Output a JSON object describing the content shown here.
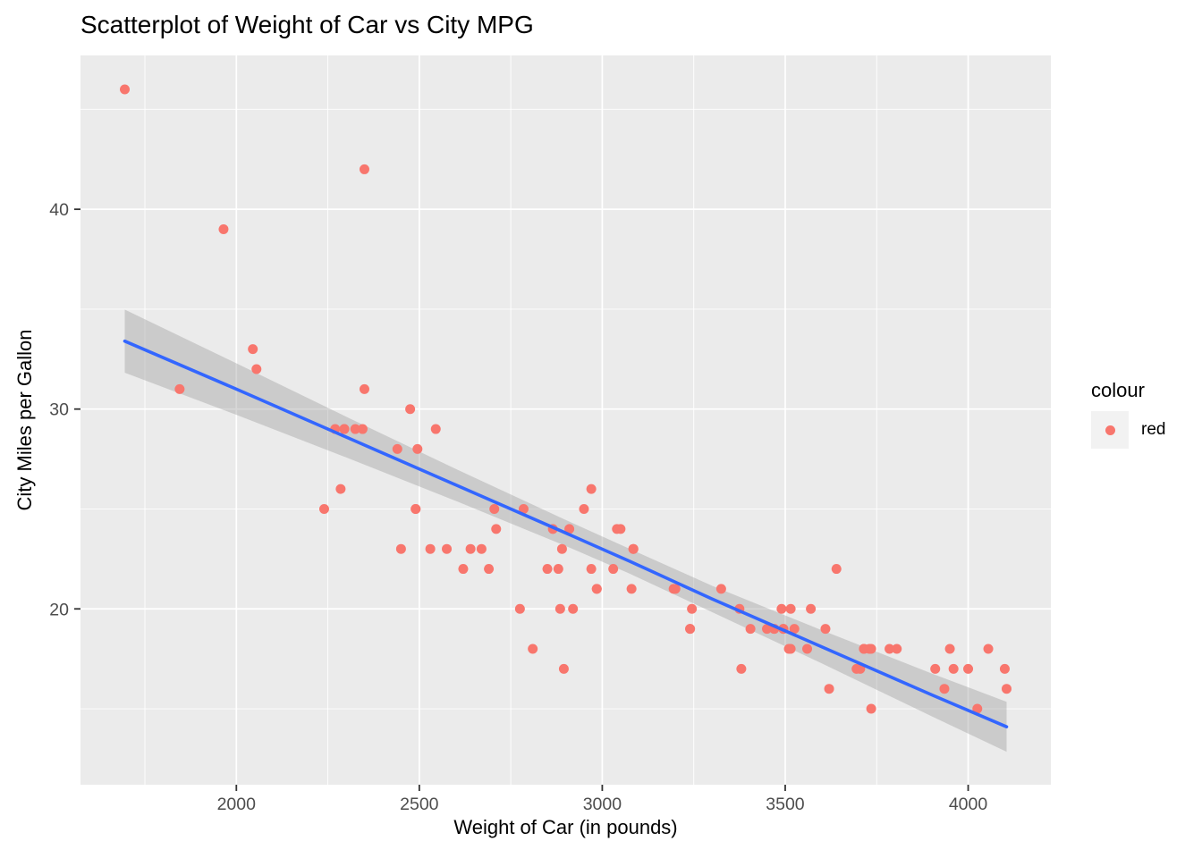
{
  "title": "Scatterplot of Weight of Car vs City MPG",
  "chart_data": {
    "type": "scatter",
    "title": "Scatterplot of Weight of Car vs City MPG",
    "xlabel": "Weight of Car (in pounds)",
    "ylabel": "City Miles per Gallon",
    "xlim": [
      1574,
      4226
    ],
    "ylim": [
      11.2,
      47.7
    ],
    "x_ticks": [
      2000,
      2500,
      3000,
      3500,
      4000
    ],
    "x_minor_ticks": [
      1750,
      2250,
      2750,
      3250,
      3750
    ],
    "y_ticks": [
      20,
      30,
      40
    ],
    "y_minor_ticks": [
      15,
      25,
      35,
      45
    ],
    "grid": "white major and minor gridlines on grey panel",
    "panel_color": "#EBEBEB",
    "point_color": "#F8766D",
    "point_radius": 5.5,
    "smooth_line_color": "#3366FF",
    "ci_band_color": "#9A9A9A",
    "ci_band_opacity": 0.4,
    "tick_color": "#333333",
    "tick_label_color": "#4D4D4D",
    "legend": {
      "title": "colour",
      "position": "right",
      "entries": [
        {
          "label": "red",
          "color": "#F8766D"
        }
      ]
    },
    "points": [
      [
        2705,
        25
      ],
      [
        3560,
        18
      ],
      [
        3375,
        20
      ],
      [
        3405,
        19
      ],
      [
        3640,
        22
      ],
      [
        2880,
        22
      ],
      [
        3470,
        19
      ],
      [
        4105,
        16
      ],
      [
        3495,
        19
      ],
      [
        3620,
        16
      ],
      [
        3935,
        16
      ],
      [
        2490,
        25
      ],
      [
        2785,
        25
      ],
      [
        3240,
        19
      ],
      [
        3195,
        21
      ],
      [
        3715,
        18
      ],
      [
        4025,
        15
      ],
      [
        3910,
        17
      ],
      [
        3380,
        17
      ],
      [
        3515,
        20
      ],
      [
        3085,
        23
      ],
      [
        3570,
        20
      ],
      [
        2270,
        29
      ],
      [
        2670,
        23
      ],
      [
        2970,
        22
      ],
      [
        3705,
        17
      ],
      [
        3080,
        21
      ],
      [
        3805,
        18
      ],
      [
        2295,
        29
      ],
      [
        3490,
        20
      ],
      [
        1845,
        31
      ],
      [
        2530,
        23
      ],
      [
        2690,
        22
      ],
      [
        2850,
        22
      ],
      [
        2710,
        24
      ],
      [
        3735,
        15
      ],
      [
        3325,
        21
      ],
      [
        3950,
        18
      ],
      [
        1695,
        46
      ],
      [
        2475,
        30
      ],
      [
        2865,
        24
      ],
      [
        2350,
        42
      ],
      [
        3040,
        24
      ],
      [
        2345,
        29
      ],
      [
        2620,
        22
      ],
      [
        2285,
        26
      ],
      [
        2885,
        20
      ],
      [
        4000,
        17
      ],
      [
        3510,
        18
      ],
      [
        3515,
        18
      ],
      [
        3695,
        17
      ],
      [
        4055,
        18
      ],
      [
        2325,
        29
      ],
      [
        2440,
        28
      ],
      [
        2970,
        26
      ],
      [
        3735,
        18
      ],
      [
        2895,
        17
      ],
      [
        2920,
        20
      ],
      [
        3525,
        19
      ],
      [
        2450,
        23
      ],
      [
        3610,
        19
      ],
      [
        2295,
        29
      ],
      [
        3730,
        18
      ],
      [
        2545,
        29
      ],
      [
        3050,
        24
      ],
      [
        4100,
        17
      ],
      [
        3200,
        21
      ],
      [
        2910,
        24
      ],
      [
        2890,
        23
      ],
      [
        3715,
        18
      ],
      [
        3470,
        19
      ],
      [
        2640,
        23
      ],
      [
        2350,
        31
      ],
      [
        2575,
        23
      ],
      [
        3240,
        19
      ],
      [
        3450,
        19
      ],
      [
        3495,
        19
      ],
      [
        2775,
        20
      ],
      [
        2495,
        28
      ],
      [
        2045,
        33
      ],
      [
        2490,
        25
      ],
      [
        3085,
        23
      ],
      [
        1965,
        39
      ],
      [
        2055,
        32
      ],
      [
        2950,
        25
      ],
      [
        3030,
        22
      ],
      [
        3785,
        18
      ],
      [
        2240,
        25
      ],
      [
        3960,
        17
      ],
      [
        2985,
        21
      ],
      [
        2810,
        18
      ],
      [
        2985,
        21
      ],
      [
        3245,
        20
      ]
    ],
    "smooth": {
      "method": "lm",
      "x": [
        1695,
        2000,
        2300,
        2600,
        2900,
        3073,
        3300,
        3600,
        3900,
        4105
      ],
      "y_fit": [
        33.4,
        31.0,
        28.6,
        26.2,
        23.8,
        22.4,
        20.5,
        18.1,
        15.7,
        14.1
      ],
      "ci_half_width": [
        1.58,
        1.29,
        1.02,
        0.8,
        0.65,
        0.62,
        0.66,
        0.83,
        1.07,
        1.25
      ]
    }
  }
}
